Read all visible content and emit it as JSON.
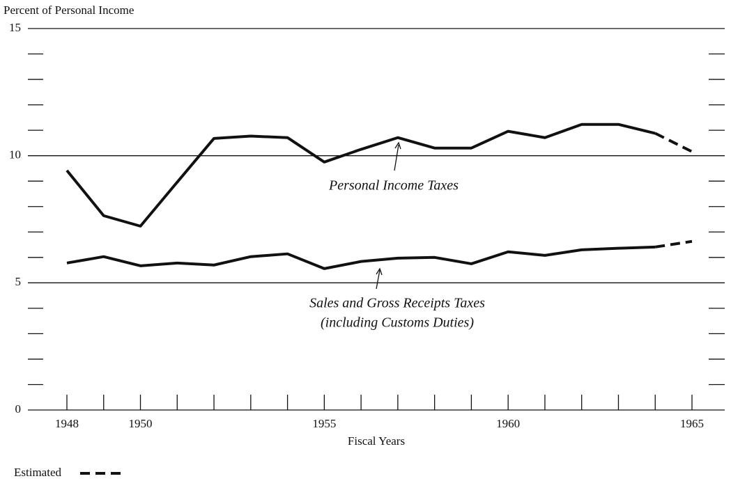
{
  "chart_data": {
    "type": "line",
    "y_label": "Percent of Personal Income",
    "x_label": "Fiscal Years",
    "x": [
      1948,
      1949,
      1950,
      1951,
      1952,
      1953,
      1954,
      1955,
      1956,
      1957,
      1958,
      1959,
      1960,
      1961,
      1962,
      1963,
      1964,
      1965
    ],
    "series": [
      {
        "name": "Personal Income Taxes",
        "color": "#111111",
        "values": [
          9.42,
          7.64,
          7.23,
          8.96,
          10.68,
          10.77,
          10.71,
          9.75,
          10.25,
          10.71,
          10.3,
          10.3,
          10.96,
          10.71,
          11.23,
          11.23,
          10.88,
          10.16
        ]
      },
      {
        "name": "Sales and Gross Receipts Taxes",
        "subname": "(including Customs Duties)",
        "color": "#111111",
        "values": [
          5.78,
          6.03,
          5.67,
          5.78,
          5.7,
          6.03,
          6.14,
          5.56,
          5.84,
          5.97,
          6.0,
          5.75,
          6.22,
          6.08,
          6.3,
          6.36,
          6.41,
          6.63
        ]
      }
    ],
    "estimated": {
      "label": "Estimated",
      "from_x": 1964
    },
    "xlim": [
      1948,
      1965
    ],
    "xticks": [
      1948,
      1950,
      1955,
      1960,
      1965
    ],
    "ylim": [
      0,
      15
    ],
    "yticks": [
      0,
      5,
      10,
      15
    ],
    "yticks_minor": [
      1,
      2,
      3,
      4,
      6,
      7,
      8,
      9,
      11,
      12,
      13,
      14
    ],
    "grid": true
  }
}
